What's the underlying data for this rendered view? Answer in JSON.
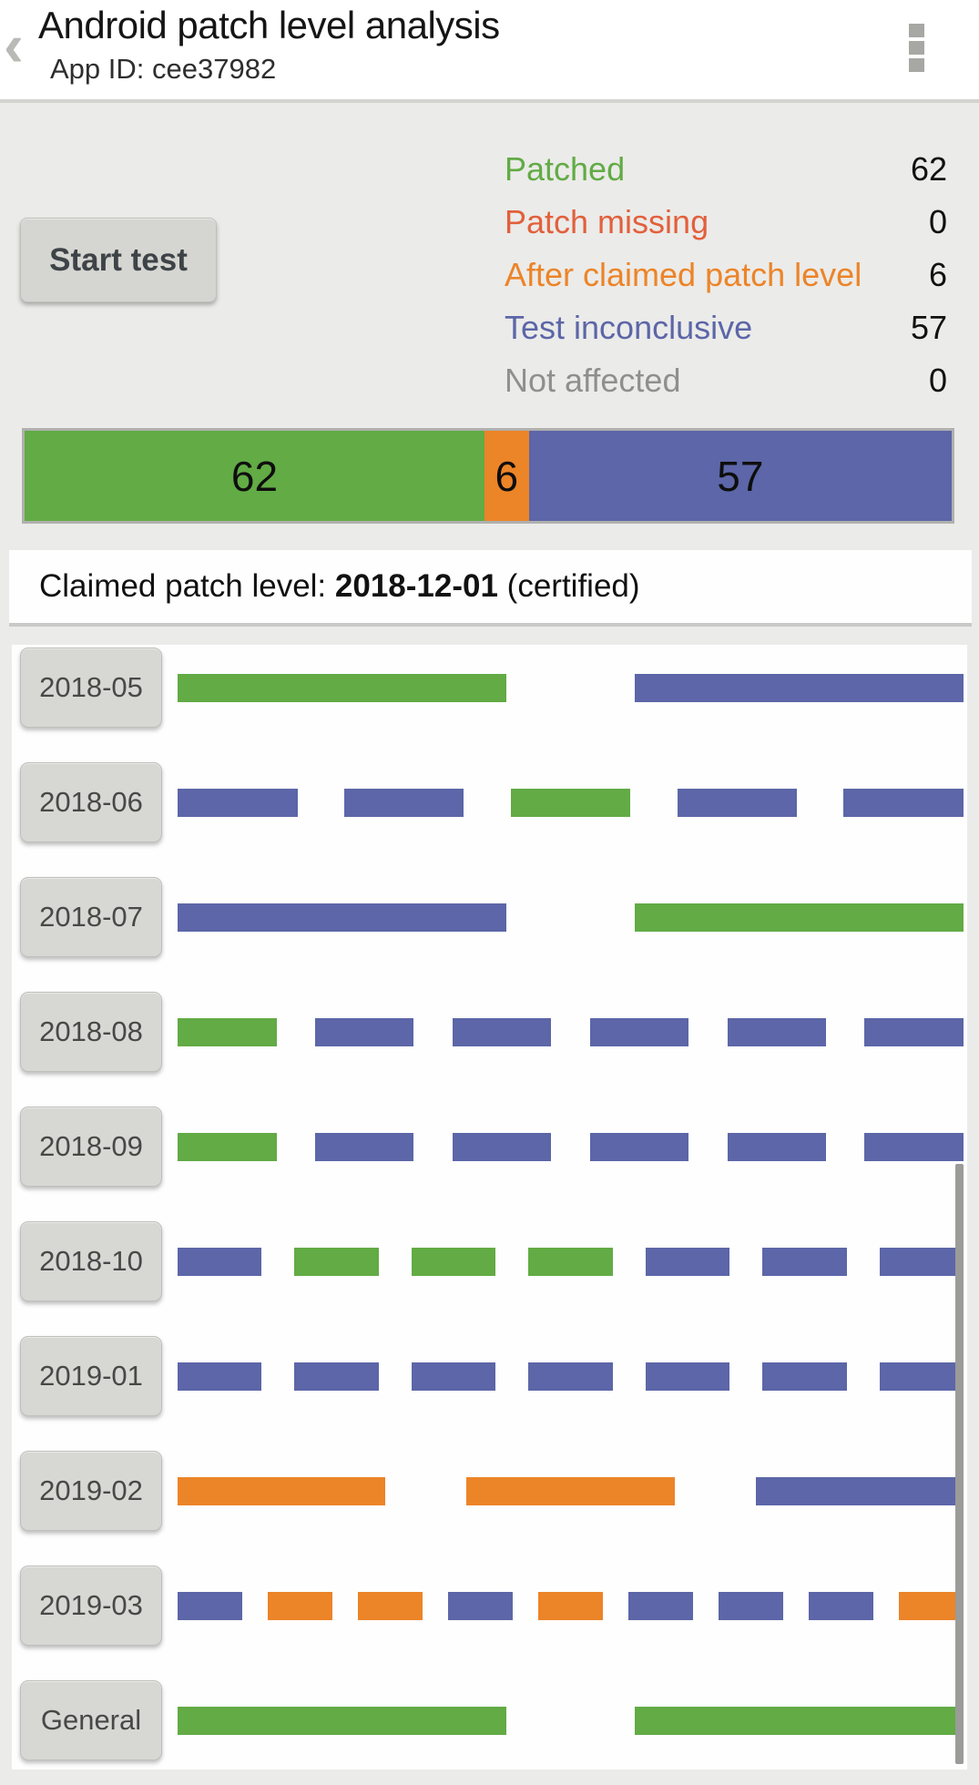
{
  "header": {
    "title": "Android patch level analysis",
    "subtitle": "App ID: cee37982",
    "back_glyph": "‹",
    "menu_icon": "overflow-dots-icon"
  },
  "start_button": {
    "label": "Start test"
  },
  "colors": {
    "patched": "#62ab45",
    "patch_missing": "#e2603c",
    "after_claimed": "#ec8428",
    "inconclusive": "#5c66a8",
    "not_affected": "#8f8f8f"
  },
  "legend": [
    {
      "label": "Patched",
      "value": "62",
      "color": "patched"
    },
    {
      "label": "Patch missing",
      "value": "0",
      "color": "patch_missing"
    },
    {
      "label": "After claimed patch level",
      "value": "6",
      "color": "after_claimed"
    },
    {
      "label": "Test inconclusive",
      "value": "57",
      "color": "inconclusive"
    },
    {
      "label": "Not affected",
      "value": "0",
      "color": "not_affected"
    }
  ],
  "claimed": {
    "prefix": "Claimed patch level: ",
    "date": "2018-12-01",
    "suffix": " (certified)"
  },
  "chart_data": {
    "type": "bar",
    "title": "Android patch level analysis",
    "legend_position": "top-right",
    "summary_bar": {
      "total": 125,
      "segments": [
        {
          "label": "Patched",
          "value": 62,
          "color": "patched"
        },
        {
          "label": "After claimed patch level",
          "value": 6,
          "color": "after_claimed"
        },
        {
          "label": "Test inconclusive",
          "value": 57,
          "color": "inconclusive"
        }
      ]
    },
    "rows": [
      {
        "label": "2018-05",
        "segments": [
          "patched",
          "inconclusive"
        ]
      },
      {
        "label": "2018-06",
        "segments": [
          "inconclusive",
          "inconclusive",
          "patched",
          "inconclusive",
          "inconclusive"
        ]
      },
      {
        "label": "2018-07",
        "segments": [
          "inconclusive",
          "patched"
        ]
      },
      {
        "label": "2018-08",
        "segments": [
          "patched",
          "inconclusive",
          "inconclusive",
          "inconclusive",
          "inconclusive",
          "inconclusive"
        ]
      },
      {
        "label": "2018-09",
        "segments": [
          "patched",
          "inconclusive",
          "inconclusive",
          "inconclusive",
          "inconclusive",
          "inconclusive"
        ]
      },
      {
        "label": "2018-10",
        "segments": [
          "inconclusive",
          "patched",
          "patched",
          "patched",
          "inconclusive",
          "inconclusive",
          "inconclusive"
        ]
      },
      {
        "label": "2019-01",
        "segments": [
          "inconclusive",
          "inconclusive",
          "inconclusive",
          "inconclusive",
          "inconclusive",
          "inconclusive",
          "inconclusive"
        ]
      },
      {
        "label": "2019-02",
        "segments": [
          "after_claimed",
          "after_claimed",
          "inconclusive"
        ]
      },
      {
        "label": "2019-03",
        "segments": [
          "inconclusive",
          "after_claimed",
          "after_claimed",
          "inconclusive",
          "after_claimed",
          "inconclusive",
          "inconclusive",
          "inconclusive",
          "after_claimed"
        ]
      },
      {
        "label": "General",
        "segments": [
          "patched",
          "patched"
        ]
      }
    ]
  }
}
